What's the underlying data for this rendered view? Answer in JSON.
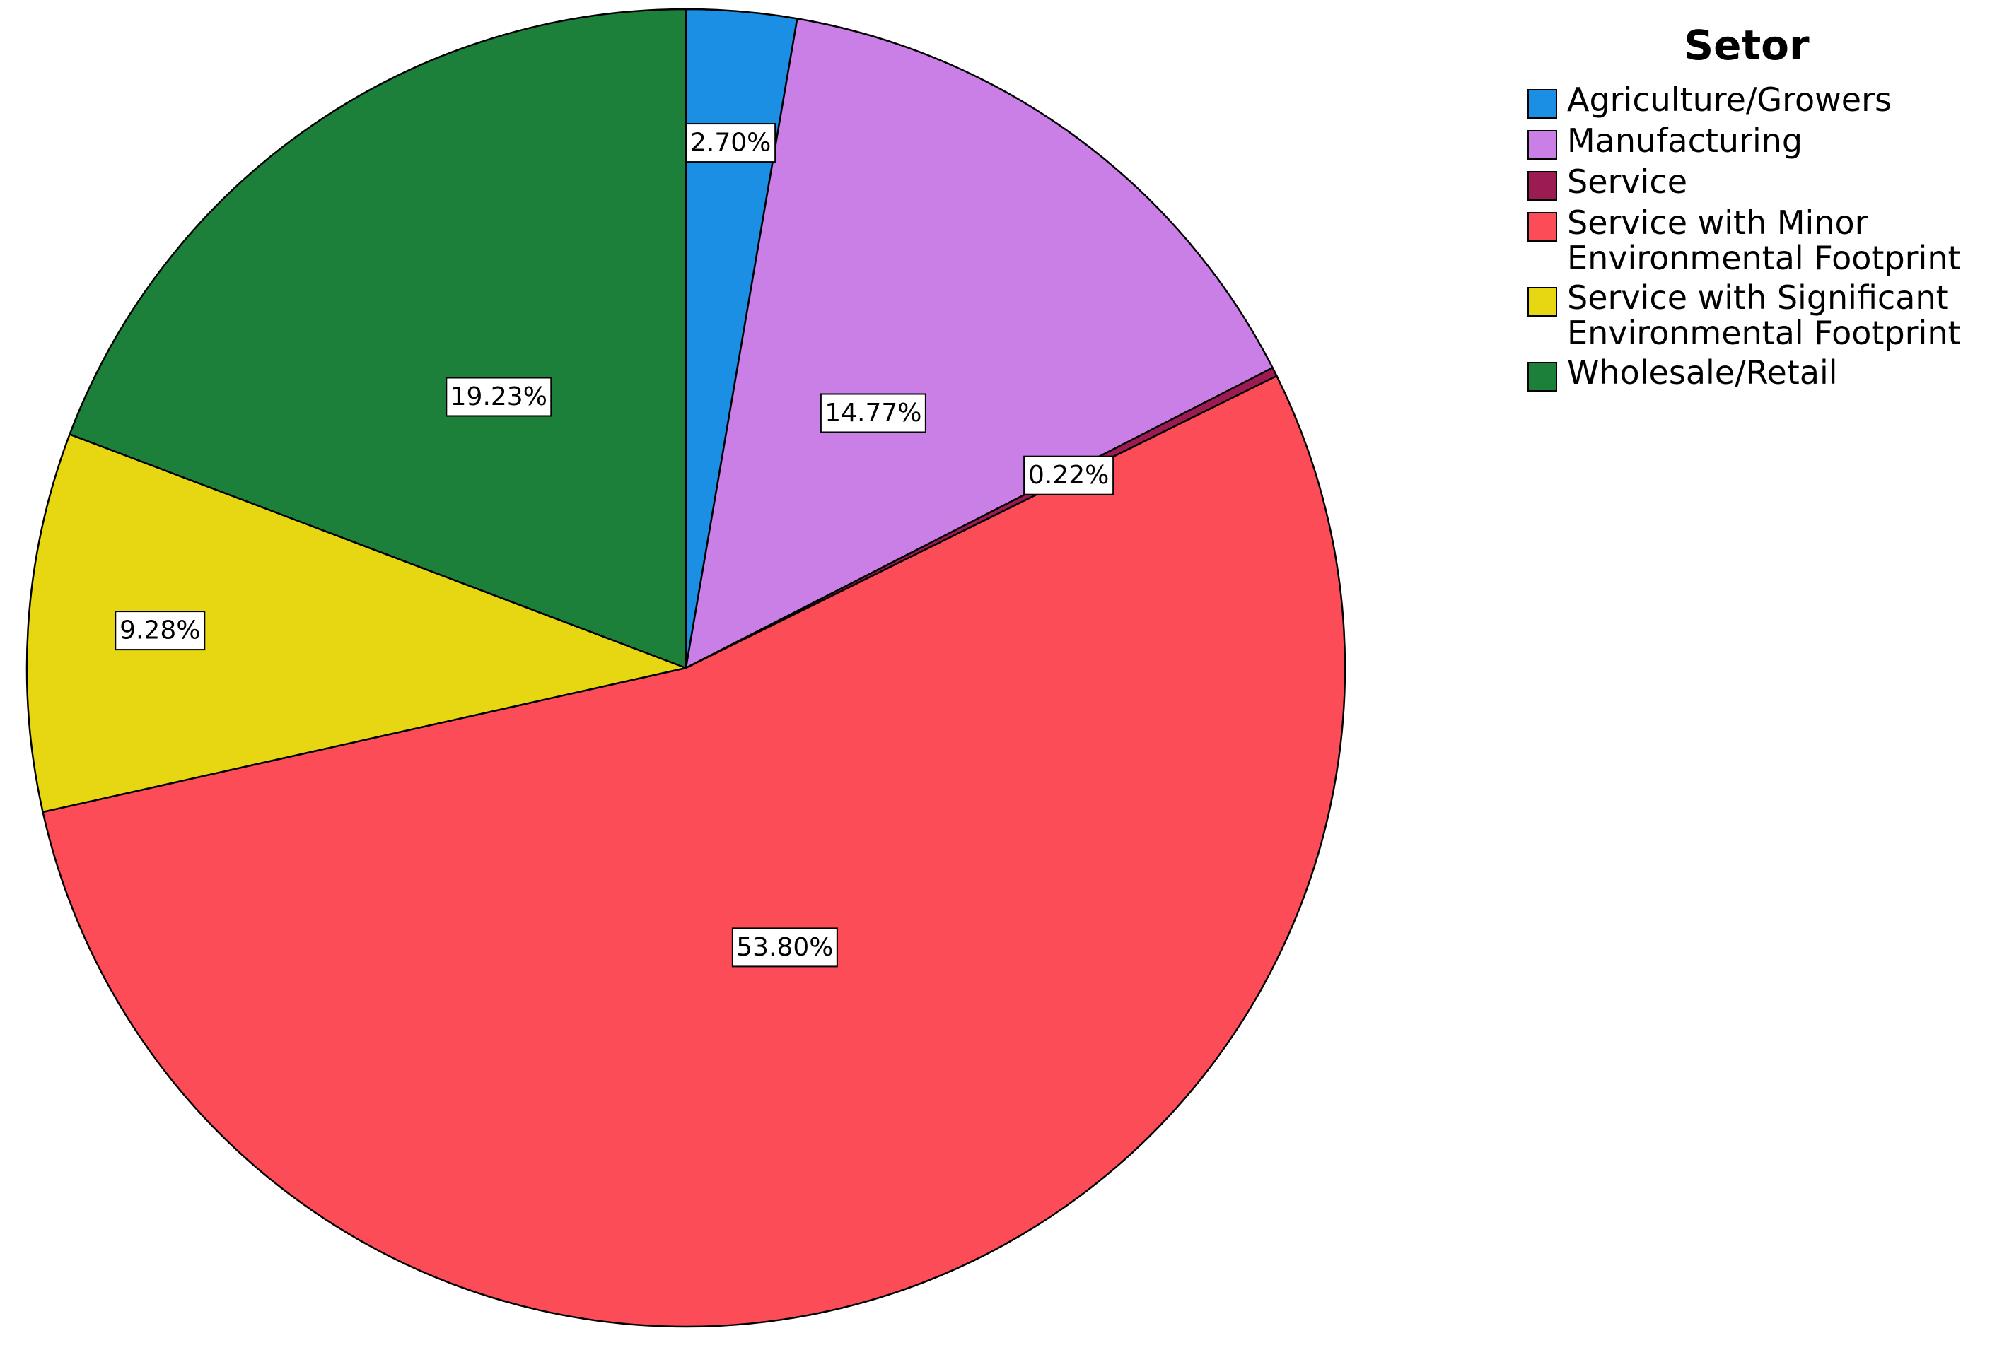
{
  "chart_data": {
    "type": "pie",
    "title": "",
    "legend_title": "Setor",
    "legend_position": "top-right",
    "start_angle_deg": 0,
    "direction": "clockwise",
    "slices": [
      {
        "name": "Agriculture/Growers",
        "legend_label": "Agriculture/Growers",
        "value": 2.7,
        "label": "2.70%",
        "color": "#1a8fe3"
      },
      {
        "name": "Manufacturing",
        "legend_label": "Manufacturing",
        "value": 14.77,
        "label": "14.77%",
        "color": "#c97fe6"
      },
      {
        "name": "Service",
        "legend_label": "Service",
        "value": 0.22,
        "label": "0.22%",
        "color": "#9b1b52"
      },
      {
        "name": "Service with Minor Environmental Footprint",
        "legend_label": "Service with Minor\nEnvironmental Footprint",
        "value": 53.8,
        "label": "53.80%",
        "color": "#fc4c58"
      },
      {
        "name": "Service with Significant Environmental Footprint",
        "legend_label": "Service with Significant\nEnvironmental Footprint",
        "value": 9.28,
        "label": "9.28%",
        "color": "#e6d712"
      },
      {
        "name": "Wholesale/Retail",
        "legend_label": "Wholesale/Retail",
        "value": 19.23,
        "label": "19.23%",
        "color": "#1c7f3a"
      }
    ]
  }
}
